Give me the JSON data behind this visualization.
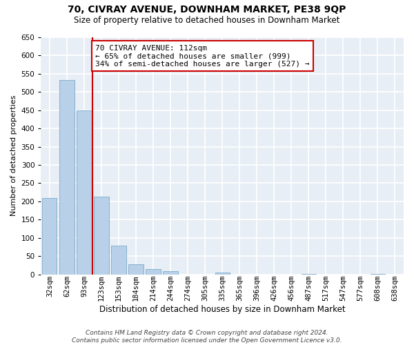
{
  "title": "70, CIVRAY AVENUE, DOWNHAM MARKET, PE38 9QP",
  "subtitle": "Size of property relative to detached houses in Downham Market",
  "xlabel": "Distribution of detached houses by size in Downham Market",
  "ylabel": "Number of detached properties",
  "bin_labels": [
    "32sqm",
    "62sqm",
    "93sqm",
    "123sqm",
    "153sqm",
    "184sqm",
    "214sqm",
    "244sqm",
    "274sqm",
    "305sqm",
    "335sqm",
    "365sqm",
    "396sqm",
    "426sqm",
    "456sqm",
    "487sqm",
    "517sqm",
    "547sqm",
    "577sqm",
    "608sqm",
    "638sqm"
  ],
  "bar_values": [
    210,
    533,
    450,
    213,
    79,
    28,
    15,
    8,
    0,
    0,
    5,
    0,
    0,
    0,
    0,
    1,
    0,
    0,
    0,
    1,
    0
  ],
  "bar_color": "#b8d0e8",
  "bar_edge_color": "#7aaac8",
  "vline_color": "#cc0000",
  "annotation_text": "70 CIVRAY AVENUE: 112sqm\n← 65% of detached houses are smaller (999)\n34% of semi-detached houses are larger (527) →",
  "annotation_box_color": "#ffffff",
  "annotation_box_edge": "#cc0000",
  "ylim": [
    0,
    650
  ],
  "yticks": [
    0,
    50,
    100,
    150,
    200,
    250,
    300,
    350,
    400,
    450,
    500,
    550,
    600,
    650
  ],
  "background_color": "#ffffff",
  "plot_bg_color": "#e8eef5",
  "grid_color": "#ffffff",
  "footer": "Contains HM Land Registry data © Crown copyright and database right 2024.\nContains public sector information licensed under the Open Government Licence v3.0.",
  "title_fontsize": 10,
  "subtitle_fontsize": 8.5,
  "ylabel_fontsize": 8,
  "xlabel_fontsize": 8.5,
  "tick_fontsize": 7.5,
  "footer_fontsize": 6.5,
  "annotation_fontsize": 8,
  "vline_x_index": 2.5
}
